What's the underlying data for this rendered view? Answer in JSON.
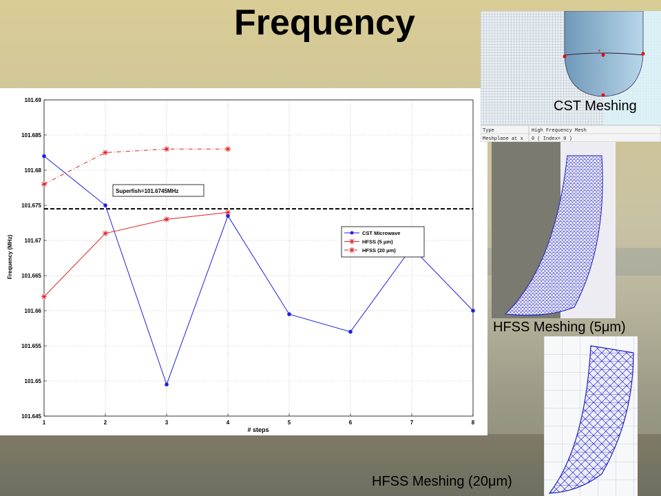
{
  "slide": {
    "title": "Frequency"
  },
  "captions": {
    "cst": "CST Meshing",
    "hfss5": "HFSS Meshing (5μm)",
    "hfss20": "HFSS Meshing (20μm)"
  },
  "cst_mesh_panel": {
    "type_label": "Type",
    "type_value": "High Frequency Mesh",
    "meshplane_label": "Meshplane at x",
    "meshplane_value": "0 ( Index= 0 )"
  },
  "chart_data": {
    "type": "line",
    "xlabel": "# steps",
    "ylabel": "Frequency (MHz)",
    "xlim": [
      1,
      8
    ],
    "ylim": [
      101.645,
      101.69
    ],
    "xticks": [
      "1",
      "2",
      "3",
      "4",
      "5",
      "6",
      "7",
      "8"
    ],
    "yticks": [
      "101.645",
      "101.65",
      "101.655",
      "101.66",
      "101.665",
      "101.67",
      "101.675",
      "101.68",
      "101.685",
      "101.69"
    ],
    "grid": true,
    "legend_position": "top-right",
    "reference": {
      "label": "Superfish=101.6745MHz",
      "value": 101.6745
    },
    "series": [
      {
        "name": "CST Microwave",
        "color": "#1f1fe0",
        "marker": "dot",
        "dash": "solid",
        "x": [
          1,
          2,
          3,
          4,
          5,
          6,
          7,
          8
        ],
        "values": [
          101.682,
          101.675,
          101.6495,
          101.6735,
          101.6595,
          101.657,
          101.669,
          101.66
        ]
      },
      {
        "name": "HFSS (5 μm)",
        "color": "#e01f1f",
        "marker": "star",
        "dash": "solid",
        "x": [
          1,
          2,
          3,
          4
        ],
        "values": [
          101.662,
          101.671,
          101.673,
          101.674
        ]
      },
      {
        "name": "HFSS (20 μm)",
        "color": "#e01f1f",
        "marker": "star",
        "dash": "dashdot",
        "x": [
          1,
          2,
          3,
          4
        ],
        "values": [
          101.678,
          101.6825,
          101.683,
          101.683
        ]
      }
    ]
  }
}
